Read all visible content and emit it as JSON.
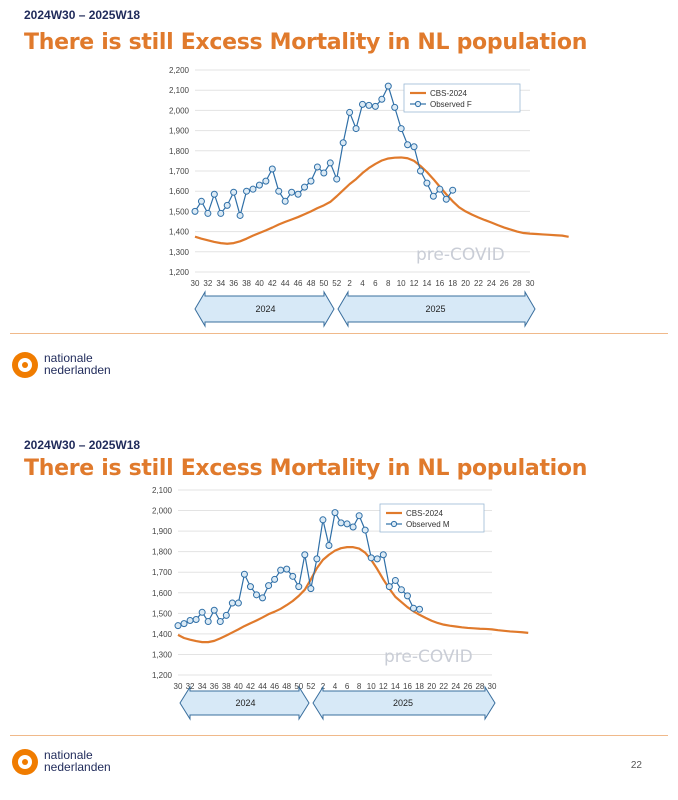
{
  "slides": [
    {
      "period": "2024W30 – 2025W18",
      "title": "There is still Excess Mortality in NL population",
      "logo_text": "nationale\nnederlanden"
    },
    {
      "period": "2024W30 – 2025W18",
      "title": "There is still Excess Mortality in NL population",
      "logo_text": "nationale\nnederlanden"
    }
  ],
  "page_number": "22",
  "colors": {
    "title": "#e07a2c",
    "expected": "#e07a2c",
    "observed": "#2f6fa7",
    "marker_fill": "#dbeaf5",
    "band": "#d7e9f7",
    "band_border": "#3a6f9e"
  },
  "chart_data": [
    {
      "type": "line",
      "title": "",
      "xlabel": "",
      "ylabel": "",
      "x_ticks": [
        "30",
        "32",
        "34",
        "36",
        "38",
        "40",
        "42",
        "44",
        "46",
        "48",
        "50",
        "52",
        "2",
        "4",
        "6",
        "8",
        "10",
        "12",
        "14",
        "16",
        "18",
        "20",
        "22",
        "24",
        "26",
        "28",
        "30"
      ],
      "y_ticks": [
        "1,200",
        "1,300",
        "1,400",
        "1,500",
        "1,600",
        "1,700",
        "1,800",
        "1,900",
        "2,000",
        "2,100",
        "2,200"
      ],
      "ylim": [
        1200,
        2200
      ],
      "grid": true,
      "legend_position": "top-right",
      "watermark": "pre-COVID",
      "year_bands": [
        "2024",
        "2025"
      ],
      "series": [
        {
          "name": "CBS-2024",
          "style": "line",
          "values": [
            1375,
            1365,
            1357,
            1349,
            1343,
            1340,
            1343,
            1352,
            1365,
            1380,
            1393,
            1406,
            1420,
            1435,
            1448,
            1460,
            1472,
            1486,
            1500,
            1516,
            1530,
            1547,
            1575,
            1605,
            1635,
            1660,
            1690,
            1715,
            1735,
            1752,
            1762,
            1766,
            1767,
            1763,
            1750,
            1725,
            1695,
            1660,
            1622,
            1585,
            1550,
            1520,
            1500,
            1484,
            1470,
            1457,
            1445,
            1432,
            1420,
            1410,
            1400,
            1393,
            1390,
            1388,
            1386,
            1384,
            1382,
            1380,
            1374
          ]
        },
        {
          "name": "Observed F",
          "style": "line-markers",
          "values": [
            1500,
            1550,
            1490,
            1585,
            1490,
            1530,
            1595,
            1480,
            1600,
            1610,
            1630,
            1650,
            1710,
            1600,
            1550,
            1595,
            1585,
            1620,
            1650,
            1720,
            1690,
            1740,
            1660,
            1840,
            1990,
            1910,
            2030,
            2025,
            2020,
            2055,
            2120,
            2015,
            1910,
            1830,
            1820,
            1700,
            1640,
            1575,
            1610,
            1560,
            1605
          ]
        }
      ]
    },
    {
      "type": "line",
      "title": "",
      "xlabel": "",
      "ylabel": "",
      "x_ticks": [
        "30",
        "32",
        "34",
        "36",
        "38",
        "40",
        "42",
        "44",
        "46",
        "48",
        "50",
        "52",
        "2",
        "4",
        "6",
        "8",
        "10",
        "12",
        "14",
        "16",
        "18",
        "20",
        "22",
        "24",
        "26",
        "28",
        "30"
      ],
      "y_ticks": [
        "1,200",
        "1,300",
        "1,400",
        "1,500",
        "1,600",
        "1,700",
        "1,800",
        "1,900",
        "2,000",
        "2,100"
      ],
      "ylim": [
        1200,
        2100
      ],
      "grid": true,
      "legend_position": "top-right",
      "watermark": "pre-COVID",
      "year_bands": [
        "2024",
        "2025"
      ],
      "series": [
        {
          "name": "CBS-2024",
          "style": "line",
          "values": [
            1395,
            1380,
            1372,
            1365,
            1360,
            1360,
            1366,
            1378,
            1392,
            1407,
            1422,
            1438,
            1452,
            1465,
            1480,
            1496,
            1508,
            1522,
            1540,
            1560,
            1585,
            1615,
            1665,
            1720,
            1760,
            1785,
            1805,
            1817,
            1822,
            1822,
            1815,
            1795,
            1760,
            1715,
            1665,
            1620,
            1580,
            1555,
            1530,
            1510,
            1493,
            1478,
            1464,
            1453,
            1445,
            1440,
            1436,
            1432,
            1429,
            1427,
            1425,
            1424,
            1422,
            1418,
            1415,
            1412,
            1410,
            1408,
            1405
          ]
        },
        {
          "name": "Observed M",
          "style": "line-markers",
          "values": [
            1440,
            1450,
            1465,
            1470,
            1505,
            1460,
            1515,
            1460,
            1490,
            1550,
            1550,
            1690,
            1630,
            1590,
            1575,
            1635,
            1665,
            1710,
            1715,
            1680,
            1630,
            1785,
            1620,
            1765,
            1955,
            1830,
            1990,
            1940,
            1935,
            1920,
            1975,
            1905,
            1770,
            1765,
            1785,
            1630,
            1660,
            1615,
            1585,
            1525,
            1520
          ]
        }
      ]
    }
  ]
}
